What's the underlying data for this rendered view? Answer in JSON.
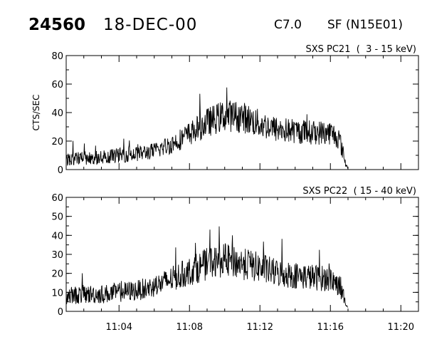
{
  "header": {
    "event_id": "24560",
    "date": "18-DEC-00",
    "goes_class": "C7.0",
    "flare_location": "SF (N15E01)"
  },
  "chart_data": [
    {
      "type": "line",
      "title": "SXS PC21  (  3 - 15 keV)",
      "ylabel": "CTS/SEC",
      "xlabel": "",
      "ylim": [
        0,
        80
      ],
      "yticks": [
        0,
        20,
        40,
        60,
        80
      ],
      "xlim": [
        "11:01",
        "11:21"
      ],
      "xticks": [
        "11:04",
        "11:08",
        "11:12",
        "11:16",
        "11:20"
      ],
      "show_xtick_labels": false,
      "series": [
        {
          "x": [
            "11:01",
            "11:02",
            "11:03",
            "11:04",
            "11:05",
            "11:06",
            "11:07",
            "11:08",
            "11:09",
            "11:10",
            "11:11",
            "11:12",
            "11:13",
            "11:14",
            "11:15",
            "11:16",
            "11:16.5",
            "11:16.9",
            "11:17"
          ],
          "values": [
            7,
            8,
            9,
            10,
            11,
            13,
            18,
            25,
            33,
            38,
            37,
            32,
            28,
            27,
            26,
            26,
            22,
            3,
            1
          ]
        }
      ]
    },
    {
      "type": "line",
      "title": "SXS PC22  ( 15 - 40 keV)",
      "ylabel": "",
      "xlabel": "",
      "ylim": [
        0,
        60
      ],
      "yticks": [
        0,
        10,
        20,
        30,
        40,
        50,
        60
      ],
      "xlim": [
        "11:01",
        "11:21"
      ],
      "xticks": [
        "11:04",
        "11:08",
        "11:12",
        "11:16",
        "11:20"
      ],
      "show_xtick_labels": true,
      "series": [
        {
          "x": [
            "11:01",
            "11:02",
            "11:03",
            "11:04",
            "11:05",
            "11:06",
            "11:07",
            "11:08",
            "11:09",
            "11:10",
            "11:11",
            "11:12",
            "11:13",
            "11:14",
            "11:15",
            "11:16",
            "11:16.5",
            "11:16.9",
            "11:17"
          ],
          "values": [
            8,
            9,
            9,
            10,
            11,
            13,
            17,
            21,
            25,
            27,
            25,
            23,
            20,
            19,
            18,
            17,
            14,
            2,
            3
          ]
        }
      ]
    }
  ]
}
